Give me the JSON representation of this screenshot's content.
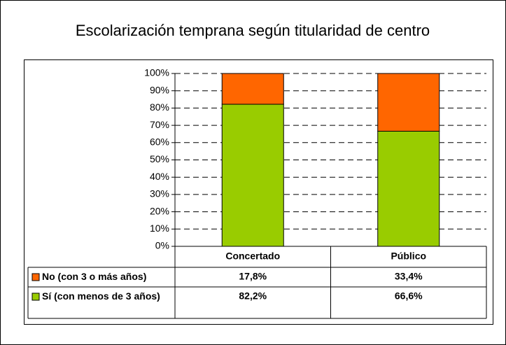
{
  "chart_data": {
    "type": "stacked_bar",
    "title": "Escolarización temprana según titularidad de centro",
    "categories": [
      "Concertado",
      "Público"
    ],
    "series": [
      {
        "name": "No (con 3 o más años)",
        "color": "#ff6600",
        "values": [
          17.8,
          33.4
        ],
        "value_labels": [
          "17,8%",
          "33,4%"
        ]
      },
      {
        "name": "Sí (con menos de 3 años)",
        "color": "#99cc00",
        "values": [
          82.2,
          66.6
        ],
        "value_labels": [
          "82,2%",
          "66,6%"
        ]
      }
    ],
    "ylim": [
      0,
      100
    ],
    "yticks": [
      {
        "value": 0,
        "label": "0%"
      },
      {
        "value": 10,
        "label": "10%"
      },
      {
        "value": 20,
        "label": "20%"
      },
      {
        "value": 30,
        "label": "30%"
      },
      {
        "value": 40,
        "label": "40%"
      },
      {
        "value": 50,
        "label": "50%"
      },
      {
        "value": 60,
        "label": "60%"
      },
      {
        "value": 70,
        "label": "70%"
      },
      {
        "value": 80,
        "label": "80%"
      },
      {
        "value": 90,
        "label": "90%"
      },
      {
        "value": 100,
        "label": "100%"
      }
    ],
    "grid": true
  }
}
